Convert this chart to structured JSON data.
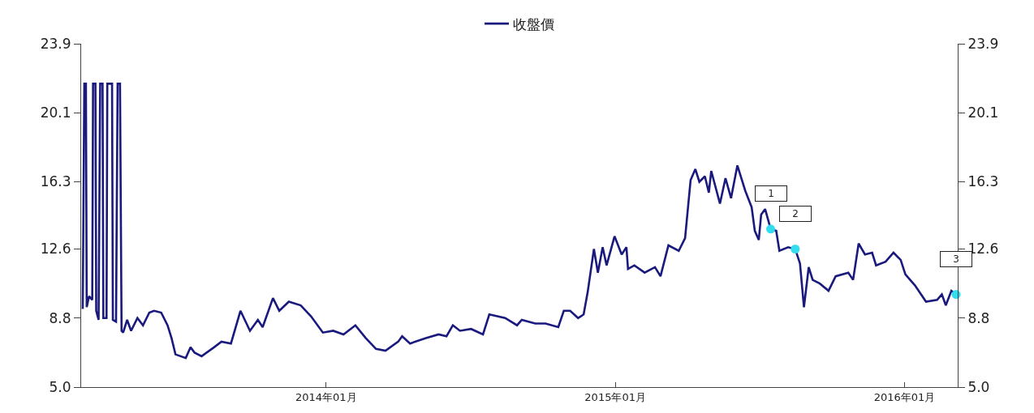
{
  "chart_data": {
    "type": "line",
    "xlim": [
      "2013-02-26",
      "2016-03-08"
    ],
    "xticks": [
      {
        "value": "2014-01",
        "label": "2014年01月"
      },
      {
        "value": "2015-01",
        "label": "2015年01月"
      },
      {
        "value": "2016-01",
        "label": "2016年01月"
      }
    ],
    "ylim": [
      5.0,
      23.9
    ],
    "yticks": [
      {
        "value": 5.0,
        "label": "5.0"
      },
      {
        "value": 8.8,
        "label": "8.8"
      },
      {
        "value": 12.6,
        "label": "12.6"
      },
      {
        "value": 16.3,
        "label": "16.3"
      },
      {
        "value": 20.1,
        "label": "20.1"
      },
      {
        "value": 23.9,
        "label": "23.9"
      }
    ],
    "y2lim": [
      5.0,
      23.9
    ],
    "y2ticks": [
      {
        "value": 5.0,
        "label": "5.0"
      },
      {
        "value": 8.8,
        "label": "8.8"
      },
      {
        "value": 12.6,
        "label": "12.6"
      },
      {
        "value": 16.3,
        "label": "16.3"
      },
      {
        "value": 20.1,
        "label": "20.1"
      },
      {
        "value": 23.9,
        "label": "23.9"
      }
    ],
    "legend": "top",
    "series": [
      {
        "name": "收盤價",
        "color": "#1a1a7e",
        "line_style": "solid",
        "x": [
          "2013-02-28",
          "2013-03-02",
          "2013-03-04",
          "2013-03-05",
          "2013-03-08",
          "2013-03-12",
          "2013-03-13",
          "2013-03-16",
          "2013-03-17",
          "2013-03-20",
          "2013-03-22",
          "2013-03-25",
          "2013-03-26",
          "2013-03-30",
          "2013-03-31",
          "2013-04-06",
          "2013-04-07",
          "2013-04-11",
          "2013-04-13",
          "2013-04-16",
          "2013-04-18",
          "2013-04-20",
          "2013-04-25",
          "2013-04-30",
          "2013-05-08",
          "2013-05-15",
          "2013-05-23",
          "2013-05-29",
          "2013-06-07",
          "2013-06-15",
          "2013-06-20",
          "2013-06-25",
          "2013-07-08",
          "2013-07-14",
          "2013-07-19",
          "2013-07-28",
          "2013-08-13",
          "2013-08-22",
          "2013-09-03",
          "2013-09-15",
          "2013-09-27",
          "2013-10-07",
          "2013-10-13",
          "2013-10-26",
          "2013-11-03",
          "2013-11-15",
          "2013-11-30",
          "2013-12-13",
          "2013-12-28",
          "2014-01-10",
          "2014-01-23",
          "2014-02-07",
          "2014-02-20",
          "2014-03-05",
          "2014-03-17",
          "2014-04-02",
          "2014-04-07",
          "2014-04-17",
          "2014-05-07",
          "2014-05-23",
          "2014-06-02",
          "2014-06-10",
          "2014-06-19",
          "2014-07-03",
          "2014-07-18",
          "2014-07-26",
          "2014-08-15",
          "2014-08-30",
          "2014-09-05",
          "2014-09-22",
          "2014-10-05",
          "2014-10-21",
          "2014-10-28",
          "2014-11-05",
          "2014-11-15",
          "2014-11-22",
          "2014-11-27",
          "2014-12-05",
          "2014-12-10",
          "2014-12-16",
          "2014-12-21",
          "2014-12-31",
          "2015-01-09",
          "2015-01-15",
          "2015-01-17",
          "2015-01-25",
          "2015-02-07",
          "2015-02-20",
          "2015-02-27",
          "2015-03-09",
          "2015-03-22",
          "2015-03-30",
          "2015-04-06",
          "2015-04-12",
          "2015-04-17",
          "2015-04-24",
          "2015-04-29",
          "2015-05-02",
          "2015-05-13",
          "2015-05-20",
          "2015-05-27",
          "2015-06-04",
          "2015-06-14",
          "2015-06-22",
          "2015-06-26",
          "2015-07-01",
          "2015-07-04",
          "2015-07-09",
          "2015-07-16",
          "2015-07-23",
          "2015-07-27",
          "2015-08-07",
          "2015-08-16",
          "2015-08-22",
          "2015-08-27",
          "2015-09-02",
          "2015-09-07",
          "2015-09-16",
          "2015-09-27",
          "2015-10-06",
          "2015-10-22",
          "2015-10-28",
          "2015-11-04",
          "2015-11-12",
          "2015-11-21",
          "2015-11-26",
          "2015-12-08",
          "2015-12-18",
          "2015-12-27",
          "2016-01-02",
          "2016-01-14",
          "2016-01-28",
          "2016-02-11",
          "2016-02-17",
          "2016-02-22",
          "2016-02-29",
          "2016-03-06"
        ],
        "values": [
          9.3,
          21.7,
          21.7,
          9.4,
          10.0,
          9.8,
          21.7,
          21.7,
          9.2,
          8.7,
          21.7,
          21.7,
          8.8,
          8.8,
          21.7,
          21.7,
          8.7,
          8.6,
          21.7,
          21.7,
          8.1,
          8.0,
          8.7,
          8.1,
          8.8,
          8.4,
          9.1,
          9.2,
          9.1,
          8.4,
          7.7,
          6.8,
          6.6,
          7.2,
          6.9,
          6.7,
          7.2,
          7.5,
          7.4,
          9.2,
          8.1,
          8.7,
          8.3,
          9.9,
          9.2,
          9.7,
          9.5,
          8.9,
          8.0,
          8.1,
          7.9,
          8.4,
          7.7,
          7.1,
          7.0,
          7.5,
          7.8,
          7.4,
          7.7,
          7.9,
          7.8,
          8.4,
          8.1,
          8.2,
          7.9,
          9.0,
          8.8,
          8.4,
          8.7,
          8.5,
          8.5,
          8.3,
          9.2,
          9.2,
          8.8,
          9.0,
          10.2,
          12.6,
          11.3,
          12.7,
          11.7,
          13.3,
          12.3,
          12.7,
          11.5,
          11.7,
          11.3,
          11.6,
          11.1,
          12.8,
          12.5,
          13.2,
          16.4,
          17.0,
          16.3,
          16.6,
          15.7,
          16.9,
          15.1,
          16.5,
          15.4,
          17.2,
          15.8,
          14.9,
          13.6,
          13.1,
          14.5,
          14.8,
          13.7,
          13.6,
          12.5,
          12.7,
          12.6,
          11.8,
          9.4,
          11.6,
          10.9,
          10.7,
          10.3,
          11.1,
          11.3,
          10.9,
          12.9,
          12.3,
          12.4,
          11.7,
          11.9,
          12.4,
          12.0,
          11.2,
          10.6,
          9.7,
          9.8,
          10.1,
          9.5,
          10.3,
          10.1
        ]
      },
      {
        "type": "scatter",
        "color": "#33ddee",
        "marker": "circle",
        "x": [
          "2015-07-16",
          "2015-08-16",
          "2016-03-06"
        ],
        "values": [
          13.7,
          12.6,
          10.1
        ]
      }
    ],
    "annotations": [
      "1",
      "2",
      "3"
    ]
  }
}
